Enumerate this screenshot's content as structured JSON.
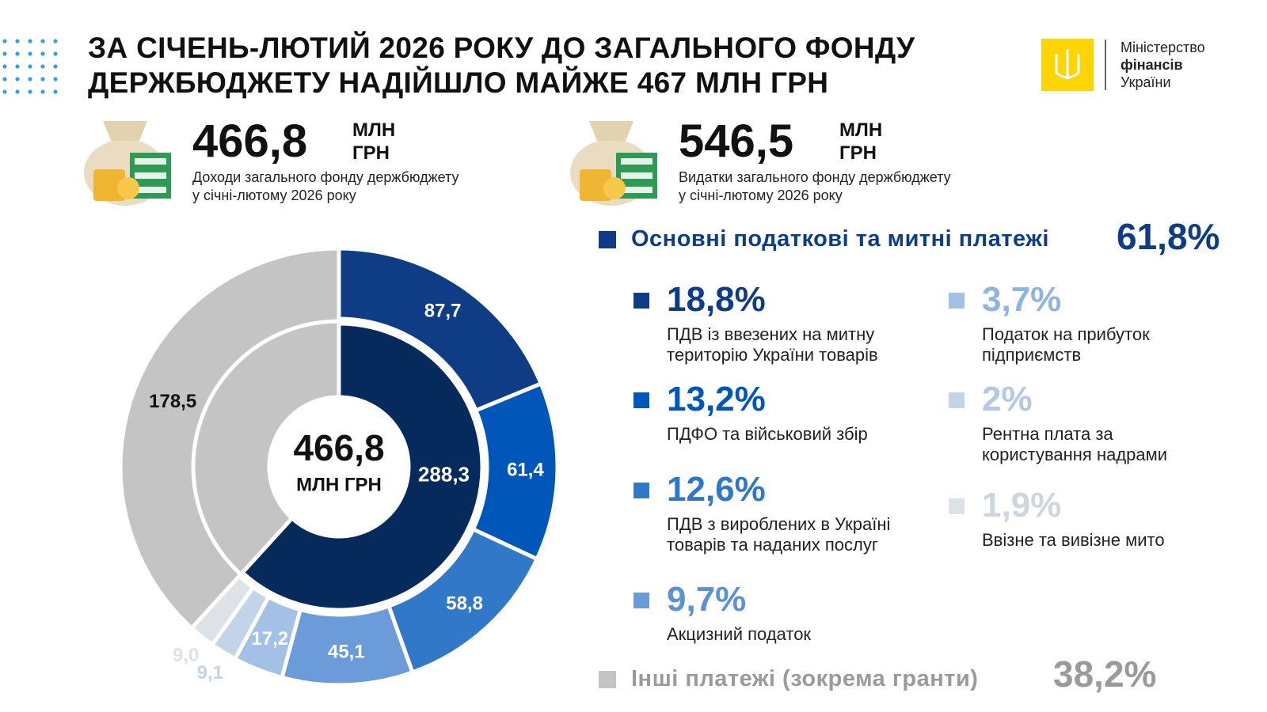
{
  "header": {
    "title_line_1": "ЗА СІЧЕНЬ-ЛЮТИЙ 2026 РОКУ ДО ЗАГАЛЬНОГО ФОНДУ",
    "title_line_2": "ДЕРЖБЮДЖЕТУ НАДІЙШЛО МАЙЖЕ 467 МЛН ГРН",
    "logo": {
      "line_1": "Міністерство",
      "line_2": "фінансів",
      "line_3": "України"
    }
  },
  "kpis": [
    {
      "value": "466,8",
      "unit_1": "МЛН",
      "unit_2": "ГРН",
      "desc_1": "Доходи загального фонду держбюджету",
      "desc_2": "у січні-лютому 2026 року"
    },
    {
      "value": "546,5",
      "unit_1": "МЛН",
      "unit_2": "ГРН",
      "desc_1": "Видатки загального фонду держбюджету",
      "desc_2": "у січні-лютому 2026 року"
    }
  ],
  "chart_data": {
    "type": "donut",
    "center_value": "466,8",
    "center_unit": "МЛН ГРН",
    "inner": {
      "categories": [
        "Основні податкові та митні платежі",
        "Інші платежі (зокрема гранти)"
      ],
      "values": [
        288.3,
        178.5
      ],
      "value_labels": [
        "288,3",
        "178,5"
      ],
      "share_labels": [
        "61,8%",
        "38,2%"
      ],
      "colors": [
        "#062a5c",
        "#c4c4c4"
      ]
    },
    "outer": {
      "categories": [
        "ПДВ із ввезених на митну територію України товарів",
        "ПДФО та військовий збір",
        "ПДВ з вироблених в Україні товарів та наданих послуг",
        "Акцизний податок",
        "Податок на прибуток підприємств",
        "Рентна плата за користування надрами",
        "Ввізне та вивізне мито"
      ],
      "values": [
        87.7,
        61.4,
        58.8,
        45.1,
        17.2,
        9.1,
        9.0
      ],
      "value_labels": [
        "87,7",
        "61,4",
        "58,8",
        "45,1",
        "17,2",
        "9,1",
        "9,0"
      ],
      "share_labels": [
        "18,8%",
        "13,2%",
        "12,6%",
        "9,7%",
        "3,7%",
        "2%",
        "1,9%"
      ],
      "colors": [
        "#0e3d86",
        "#0057b9",
        "#3278c8",
        "#6b9bd8",
        "#a3c0e6",
        "#c3d3e8",
        "#dce2e7"
      ]
    }
  }
}
